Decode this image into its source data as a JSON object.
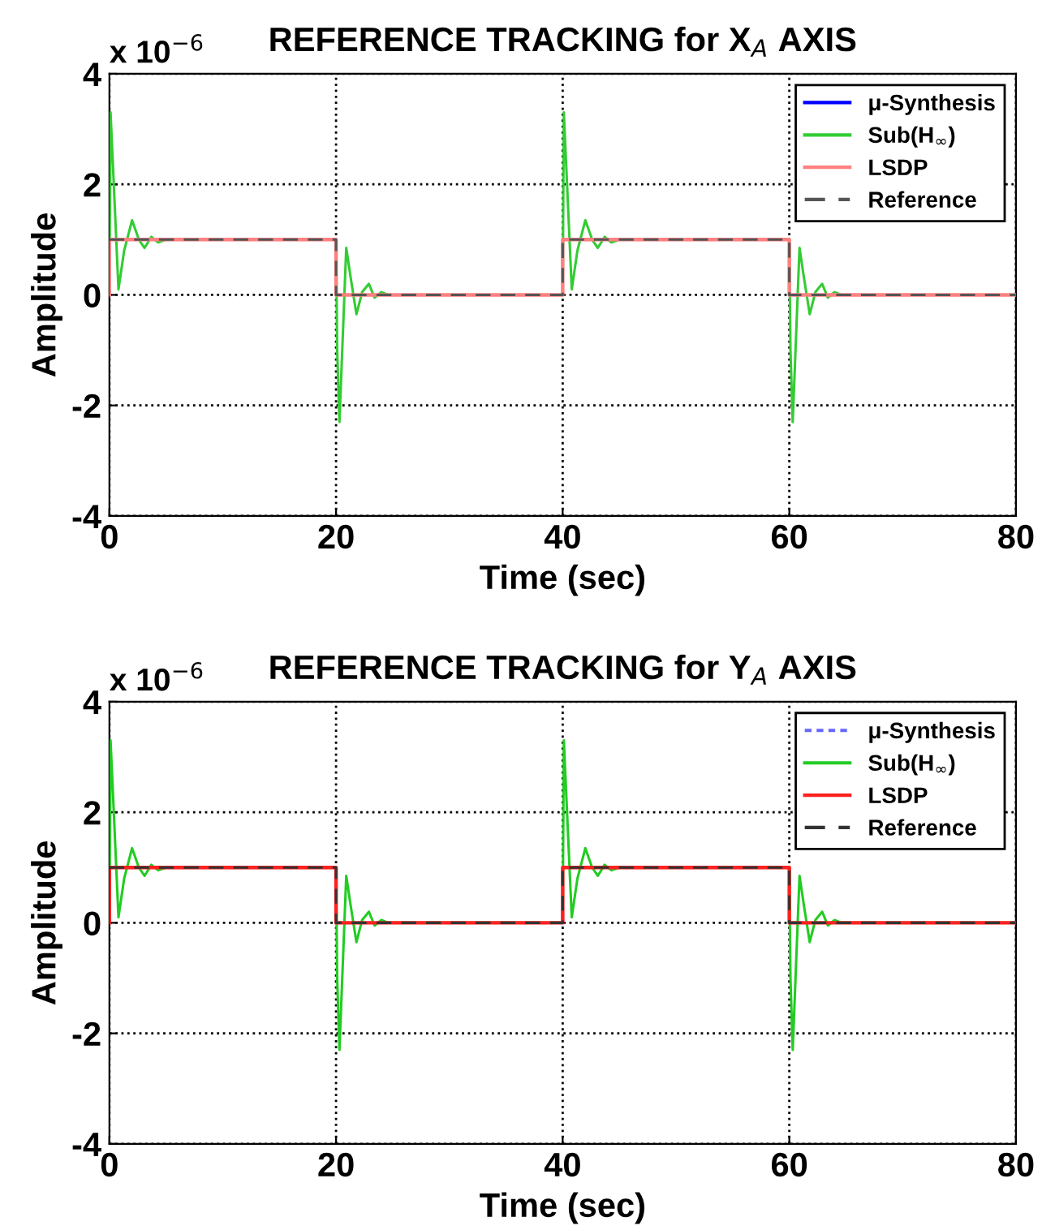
{
  "chart_data": [
    {
      "type": "line",
      "title": "REFERENCE TRACKING for X$_{A}$ AXIS",
      "xlabel": "Time (sec)",
      "ylabel": "Amplitude",
      "annotations": [
        "x 10$^{−6}$"
      ],
      "xlim": [
        0,
        80
      ],
      "xticks": [
        0,
        20,
        40,
        60,
        80
      ],
      "ylim": [
        -4,
        4
      ],
      "yticks": [
        -4,
        -2,
        0,
        2,
        4
      ],
      "grid": true,
      "legend": "top right",
      "series": [
        {
          "name": "μ-Synthesis",
          "color": "#0000ff",
          "line_style": "solid"
        },
        {
          "name": "Sub(H$_{∞}$)",
          "color": "#33cc33",
          "line_style": "solid",
          "x": [
            0,
            0.1,
            0.3,
            0.8,
            1.3,
            2.0,
            2.6,
            3.1,
            3.7,
            4.3,
            5.0,
            5.5,
            20,
            20.1,
            20.3,
            20.9,
            21.3,
            21.8,
            22.3,
            22.9,
            23.4,
            24.0,
            24.6,
            25.2,
            40,
            40.1,
            40.3,
            40.8,
            41.3,
            42.0,
            42.6,
            43.1,
            43.7,
            44.3,
            45.0,
            45.5,
            60,
            60.1,
            60.3,
            60.9,
            61.3,
            61.8,
            62.3,
            62.9,
            63.4,
            64.0,
            64.6,
            65.2,
            80
          ],
          "values": [
            0,
            3.3,
            2.4,
            0.1,
            0.8,
            1.35,
            1.0,
            0.85,
            1.05,
            0.95,
            1.0,
            null,
            1.0,
            -1.0,
            -2.3,
            0.85,
            0.3,
            -0.35,
            0.05,
            0.2,
            -0.05,
            0.05,
            0,
            0,
            0,
            3.3,
            2.4,
            0.1,
            0.8,
            1.35,
            1.0,
            0.85,
            1.05,
            0.95,
            1.0,
            null,
            1.0,
            -1.0,
            -2.3,
            0.85,
            0.3,
            -0.35,
            0.05,
            0.2,
            -0.05,
            0.05,
            0,
            0,
            0
          ]
        },
        {
          "name": "LSDP",
          "color": "#ff8080",
          "line_style": "solid",
          "x": [
            0,
            0,
            20,
            20,
            40,
            40,
            60,
            60,
            80
          ],
          "values": [
            0,
            1,
            1,
            0,
            0,
            1,
            1,
            0,
            0
          ]
        },
        {
          "name": "Reference",
          "color": "#555555",
          "line_style": "dashed",
          "x": [
            0,
            20,
            20,
            40,
            40,
            60,
            60,
            80
          ],
          "values": [
            1,
            1,
            0,
            0,
            1,
            1,
            0,
            0
          ]
        }
      ]
    },
    {
      "type": "line",
      "title": "REFERENCE TRACKING for Y$_{A}$ AXIS",
      "xlabel": "Time (sec)",
      "ylabel": "Amplitude",
      "annotations": [
        "x 10$^{−6}$"
      ],
      "xlim": [
        0,
        80
      ],
      "xticks": [
        0,
        20,
        40,
        60,
        80
      ],
      "ylim": [
        -4,
        4
      ],
      "yticks": [
        -4,
        -2,
        0,
        2,
        4
      ],
      "grid": true,
      "legend": "top right",
      "series": [
        {
          "name": "μ-Synthesis",
          "color": "#6666ff",
          "line_style": "dotted"
        },
        {
          "name": "Sub(H$_{∞}$)",
          "color": "#22cc22",
          "line_style": "solid",
          "x": [
            0,
            0.1,
            0.3,
            0.8,
            1.3,
            2.0,
            2.6,
            3.1,
            3.7,
            4.3,
            5.0,
            5.5,
            20,
            20.1,
            20.3,
            20.9,
            21.3,
            21.8,
            22.3,
            22.9,
            23.4,
            24.0,
            24.6,
            25.2,
            40,
            40.1,
            40.3,
            40.8,
            41.3,
            42.0,
            42.6,
            43.1,
            43.7,
            44.3,
            45.0,
            45.5,
            60,
            60.1,
            60.3,
            60.9,
            61.3,
            61.8,
            62.3,
            62.9,
            63.4,
            64.0,
            64.6,
            65.2,
            80
          ],
          "values": [
            0,
            3.3,
            2.4,
            0.1,
            0.8,
            1.35,
            1.0,
            0.85,
            1.05,
            0.95,
            1.0,
            null,
            1.0,
            -1.0,
            -2.3,
            0.85,
            0.3,
            -0.35,
            0.05,
            0.2,
            -0.05,
            0.05,
            0,
            0,
            0,
            3.3,
            2.4,
            0.1,
            0.8,
            1.35,
            1.0,
            0.85,
            1.05,
            0.95,
            1.0,
            null,
            1.0,
            -1.0,
            -2.3,
            0.85,
            0.3,
            -0.35,
            0.05,
            0.2,
            -0.05,
            0.05,
            0,
            0,
            0
          ]
        },
        {
          "name": "LSDP",
          "color": "#ff2020",
          "line_style": "solid",
          "x": [
            0,
            0,
            20,
            20,
            40,
            40,
            60,
            60,
            80
          ],
          "values": [
            0,
            1,
            1,
            0,
            0,
            1,
            1,
            0,
            0
          ]
        },
        {
          "name": "Reference",
          "color": "#333333",
          "line_style": "dashed",
          "x": [
            0,
            20,
            20,
            40,
            40,
            60,
            60,
            80
          ],
          "values": [
            1,
            1,
            0,
            0,
            1,
            1,
            0,
            0
          ]
        }
      ]
    }
  ]
}
